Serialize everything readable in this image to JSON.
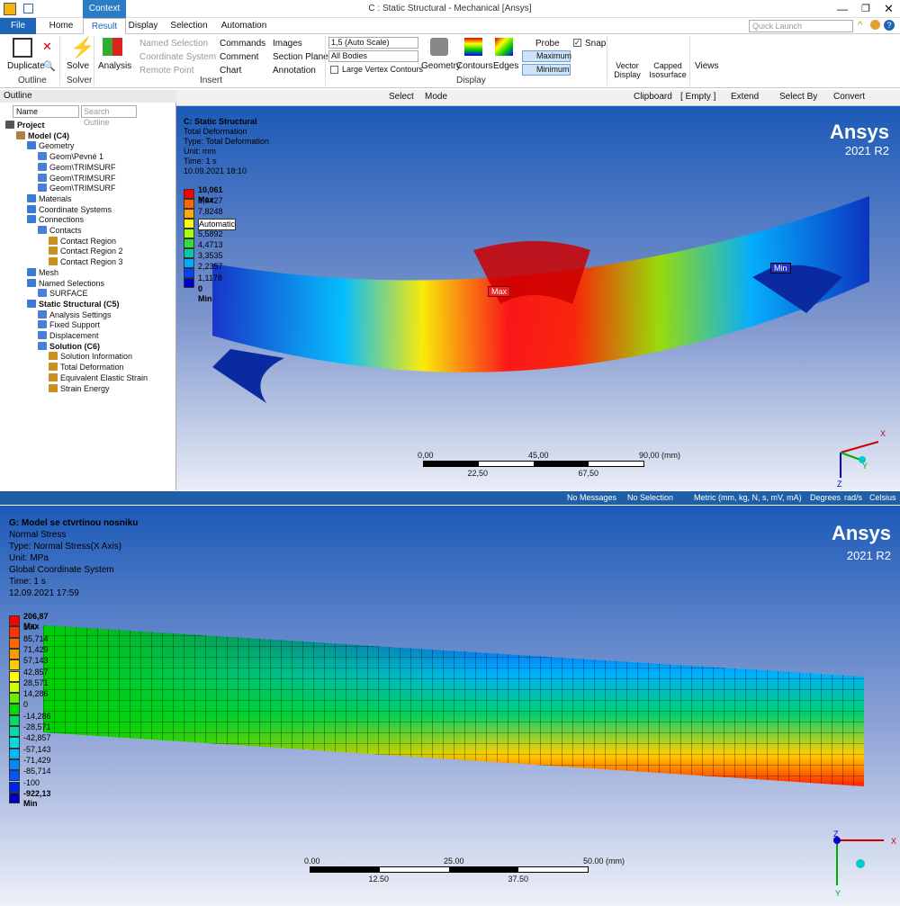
{
  "window": {
    "title": "C : Static Structural - Mechanical [Ansys]",
    "context_tab": "Context",
    "quick_launch_placeholder": "Quick Launch"
  },
  "tabs": [
    "File",
    "Home",
    "Result",
    "Display",
    "Selection",
    "Automation"
  ],
  "ribbon": {
    "outline": {
      "duplicate": "Duplicate",
      "group": "Outline"
    },
    "solve": {
      "label": "Solve",
      "group": "Solver"
    },
    "insert": {
      "analysis": "Analysis",
      "named_selection": "Named Selection",
      "coordinate_system": "Coordinate System",
      "remote_point": "Remote Point",
      "commands": "Commands",
      "comment": "Comment",
      "chart": "Chart",
      "images": "Images",
      "section_plane": "Section Plane",
      "annotation": "Annotation",
      "group": "Insert"
    },
    "display": {
      "scale": "1,5 (Auto Scale)",
      "bodies": "All Bodies",
      "large_vertex": "Large Vertex Contours",
      "geometry": "Geometry",
      "contours": "Contours",
      "edges": "Edges",
      "probe": "Probe",
      "maximum": "Maximum",
      "minimum": "Minimum",
      "snap": "Snap",
      "group": "Display"
    },
    "vector_display": "Vector Display",
    "capped_isosurface": "Capped Isosurface",
    "views": "Views"
  },
  "toolbar": {
    "select": "Select",
    "mode": "Mode",
    "clipboard": "Clipboard",
    "empty": "[ Empty ]",
    "extend": "Extend",
    "select_by": "Select By",
    "convert": "Convert"
  },
  "outline": {
    "title": "Outline",
    "filter_name": "Name",
    "search_placeholder": "Search Outline",
    "tree": [
      {
        "label": "Project",
        "depth": 0,
        "bold": true
      },
      {
        "label": "Model (C4)",
        "depth": 1,
        "bold": true
      },
      {
        "label": "Geometry",
        "depth": 2
      },
      {
        "label": "Geom\\Pevné 1",
        "depth": 3
      },
      {
        "label": "Geom\\TRIMSURF",
        "depth": 3
      },
      {
        "label": "Geom\\TRIMSURF",
        "depth": 3
      },
      {
        "label": "Geom\\TRIMSURF",
        "depth": 3
      },
      {
        "label": "Materials",
        "depth": 2
      },
      {
        "label": "Coordinate Systems",
        "depth": 2
      },
      {
        "label": "Connections",
        "depth": 2
      },
      {
        "label": "Contacts",
        "depth": 3
      },
      {
        "label": "Contact Region",
        "depth": 4
      },
      {
        "label": "Contact Region 2",
        "depth": 4
      },
      {
        "label": "Contact Region 3",
        "depth": 4
      },
      {
        "label": "Mesh",
        "depth": 2
      },
      {
        "label": "Named Selections",
        "depth": 2
      },
      {
        "label": "SURFACE",
        "depth": 3
      },
      {
        "label": "Static Structural (C5)",
        "depth": 2,
        "bold": true
      },
      {
        "label": "Analysis Settings",
        "depth": 3
      },
      {
        "label": "Fixed Support",
        "depth": 3
      },
      {
        "label": "Displacement",
        "depth": 3
      },
      {
        "label": "Solution (C6)",
        "depth": 3,
        "bold": true
      },
      {
        "label": "Solution Information",
        "depth": 4
      },
      {
        "label": "Total Deformation",
        "depth": 4
      },
      {
        "label": "Equivalent Elastic Strain",
        "depth": 4
      },
      {
        "label": "Strain Energy",
        "depth": 4
      }
    ]
  },
  "viewport1": {
    "info": [
      "C: Static Structural",
      "Total Deformation",
      "Type: Total Deformation",
      "Unit: mm",
      "Time: 1 s",
      "10.09.2021 18:10"
    ],
    "brand": "Ansys",
    "version": "2021 R2",
    "legend": [
      "10,061 Max",
      "8,9427",
      "7,8248",
      "Automatic",
      "5,5892",
      "4,4713",
      "3,3535",
      "2,2357",
      "1,1178",
      "0 Min"
    ],
    "legend_colors": [
      "#ff0000",
      "#ff6600",
      "#ffaa00",
      "#ffff00",
      "#aaff00",
      "#33dd33",
      "#00ccaa",
      "#00aaff",
      "#0044ff",
      "#0000cc"
    ],
    "max_label": "Max",
    "min_label": "Min",
    "scale_top": [
      "0,00",
      "45,00",
      "90,00 (mm)"
    ],
    "scale_bottom": [
      "22,50",
      "67,50"
    ]
  },
  "statusbar": {
    "messages": "No Messages",
    "selection": "No Selection",
    "units": "Metric (mm, kg, N, s, mV, mA)",
    "angle": "Degrees",
    "rate": "rad/s",
    "temp": "Celsius"
  },
  "viewport2": {
    "info": [
      "G: Model se ctvrtinou nosniku",
      "Normal Stress",
      "Type: Normal Stress(X Axis)",
      "Unit: MPa",
      "Global Coordinate System",
      "Time: 1 s",
      "12.09.2021 17:59"
    ],
    "brand": "Ansys",
    "version": "2021 R2",
    "legend": [
      "206,87 Max",
      "100",
      "85,714",
      "71,429",
      "57,143",
      "42,857",
      "28,571",
      "14,286",
      "0",
      "-14,286",
      "-28,571",
      "-42,857",
      "-57,143",
      "-71,429",
      "-85,714",
      "-100",
      "-922,13 Min"
    ],
    "legend_colors": [
      "#ff0000",
      "#ff3300",
      "#ff6600",
      "#ff9900",
      "#ffcc00",
      "#ffff00",
      "#ccff00",
      "#66ee00",
      "#00dd00",
      "#00dd66",
      "#00ddaa",
      "#00dddd",
      "#00bbff",
      "#0088ff",
      "#0055ff",
      "#0022ee",
      "#0000bb"
    ],
    "scale_top": [
      "0.00",
      "25.00",
      "50.00 (mm)"
    ],
    "scale_bottom": [
      "12.50",
      "37.50"
    ]
  }
}
